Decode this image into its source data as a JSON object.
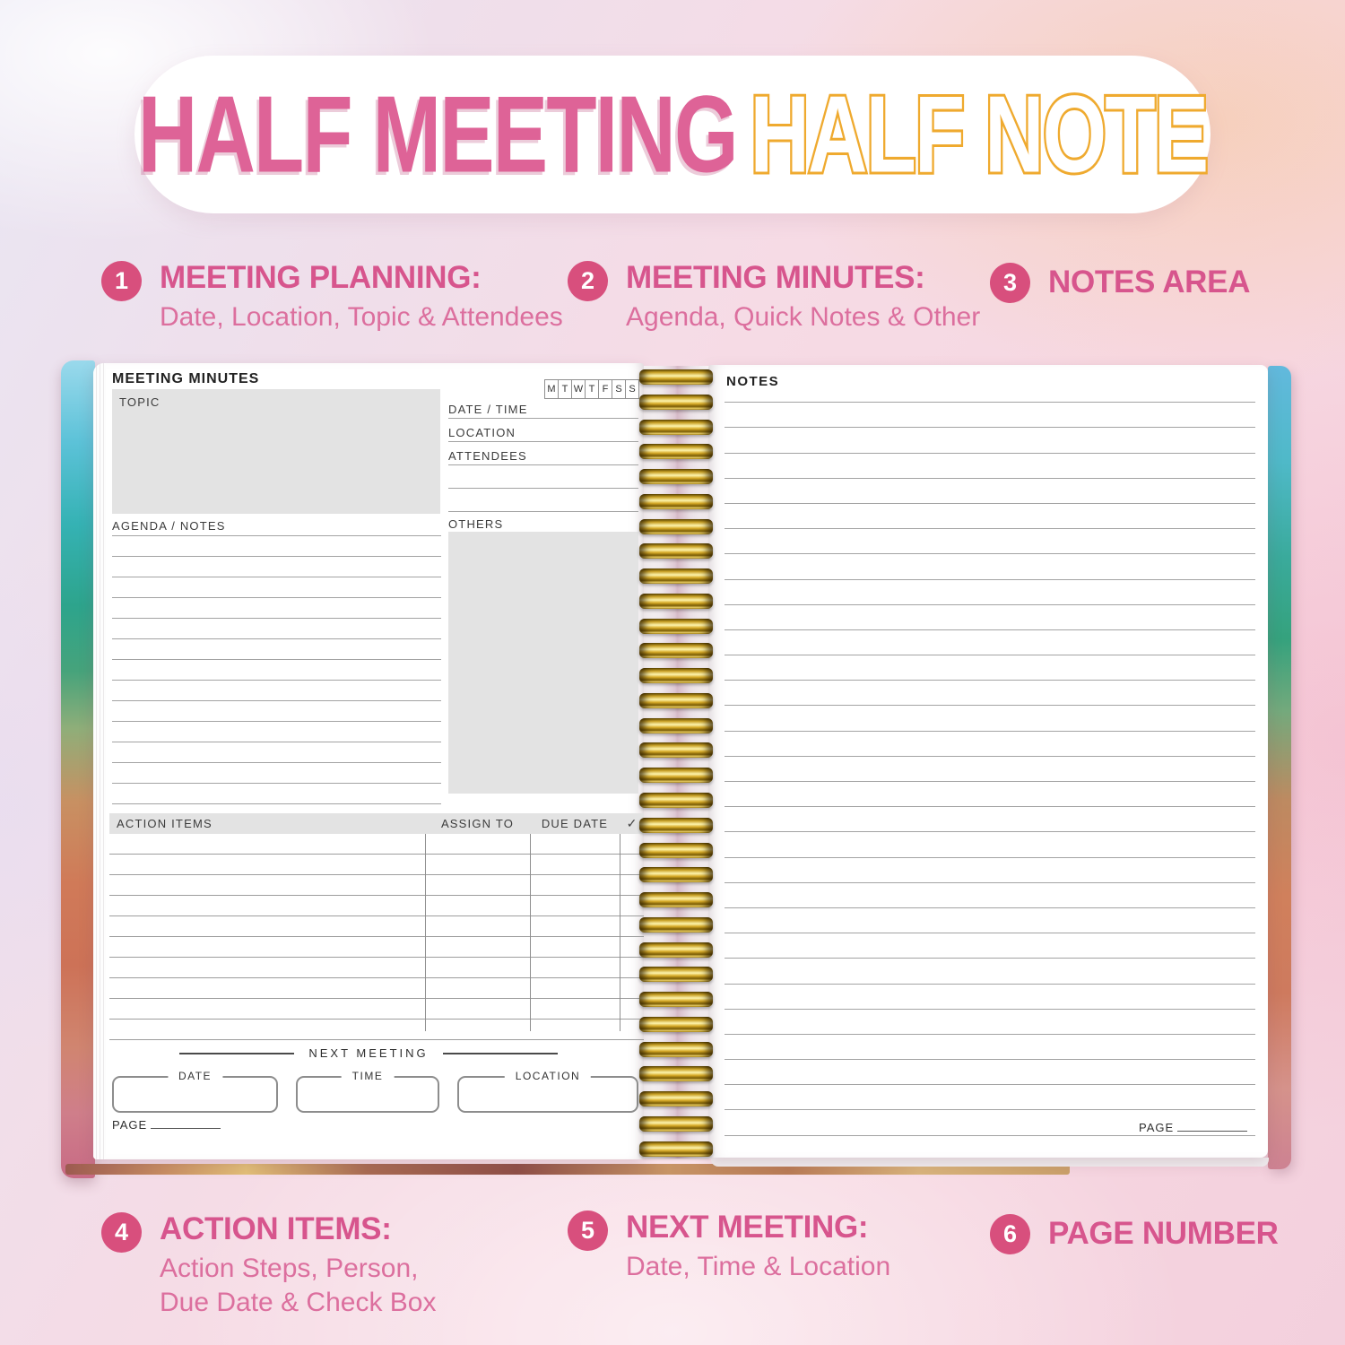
{
  "title": {
    "pink_text": "HALF MEETING",
    "outline_text": "HALF NOTE"
  },
  "features": {
    "top": [
      {
        "number": "1",
        "heading": "MEETING PLANNING:",
        "subtitle": "Date, Location, Topic & Attendees"
      },
      {
        "number": "2",
        "heading": "MEETING MINUTES:",
        "subtitle": "Agenda, Quick Notes & Other"
      },
      {
        "number": "3",
        "heading": "NOTES AREA",
        "subtitle": ""
      }
    ],
    "bottom": [
      {
        "number": "4",
        "heading": "ACTION ITEMS:",
        "subtitle": "Action Steps, Person,\nDue Date & Check Box"
      },
      {
        "number": "5",
        "heading": "NEXT MEETING:",
        "subtitle": "Date, Time & Location"
      },
      {
        "number": "6",
        "heading": "PAGE NUMBER",
        "subtitle": ""
      }
    ]
  },
  "notebook": {
    "left_page": {
      "header": "MEETING MINUTES",
      "weekdays": [
        "M",
        "T",
        "W",
        "T",
        "F",
        "S",
        "S"
      ],
      "topic_label": "TOPIC",
      "info_fields": [
        "DATE / TIME",
        "LOCATION",
        "ATTENDEES"
      ],
      "info_blank_lines": 2,
      "agenda_label": "AGENDA / NOTES",
      "agenda_lines": 14,
      "others_label": "OTHERS",
      "action_table": {
        "item_header": "ACTION ITEMS",
        "assign_header": "ASSIGN TO",
        "due_header": "DUE DATE",
        "check_header": "✓",
        "rows": 10
      },
      "next_meeting_label": "NEXT MEETING",
      "next_boxes": [
        "DATE",
        "TIME",
        "LOCATION"
      ],
      "page_label": "PAGE"
    },
    "right_page": {
      "header": "NOTES",
      "lines": 30,
      "page_label": "PAGE"
    },
    "spiral_loops": 32
  },
  "colors": {
    "title_pink": "#de6397",
    "title_yellow": "#efaa2f",
    "feature_circle": "#d84f7d",
    "feature_heading": "#d7558d",
    "feature_subtitle": "#dc6f9e",
    "panel_gray": "#e3e3e3",
    "page_line": "#a3a3a3"
  }
}
